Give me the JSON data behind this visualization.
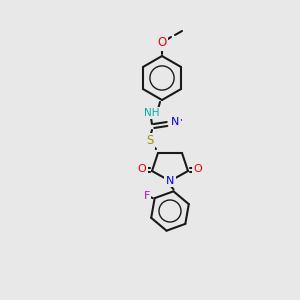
{
  "background_color": "#e8e8e8",
  "bond_color": "#1a1a1a",
  "bond_lw": 1.5,
  "atom_colors": {
    "N": "#0000ff",
    "O": "#ff0000",
    "S": "#999900",
    "F": "#cc00cc",
    "NH": "#00aaaa",
    "C": "#1a1a1a"
  },
  "font_size": 7.5
}
